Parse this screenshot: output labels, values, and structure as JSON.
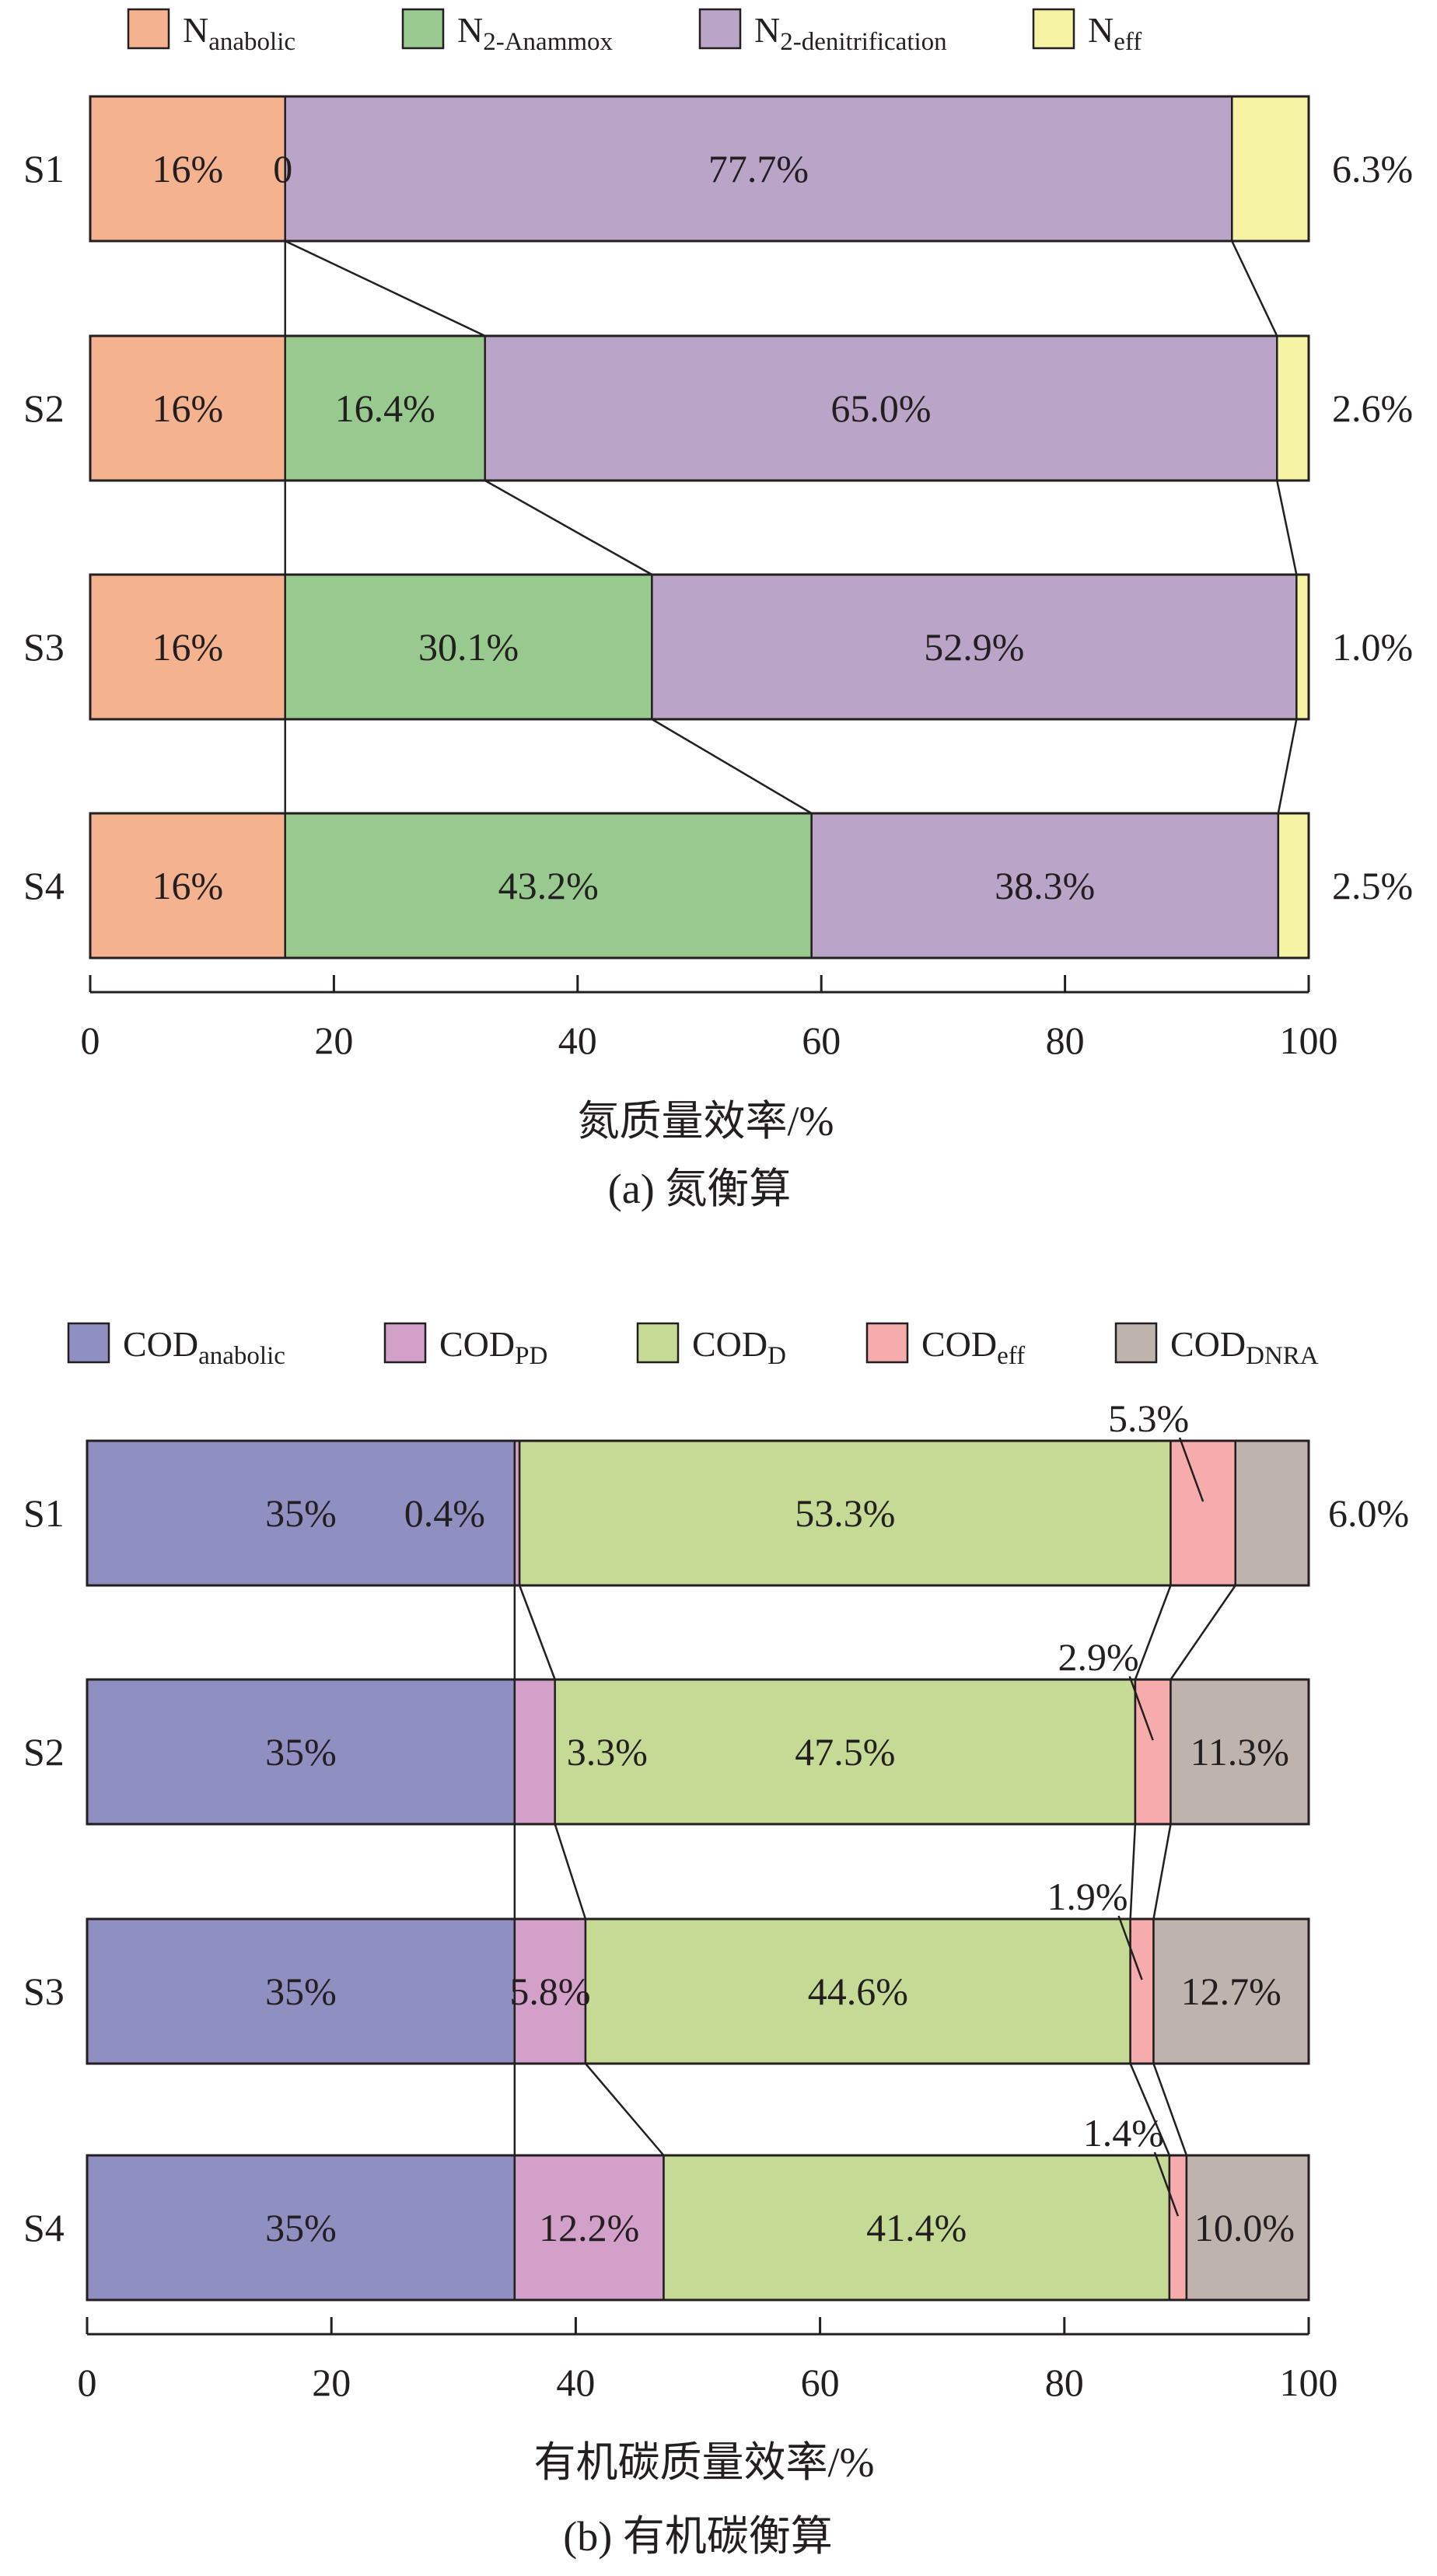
{
  "chart_data": [
    {
      "type": "bar",
      "orientation": "horizontal",
      "stacked": true,
      "caption": "(a) 氮衡算",
      "xlabel": "氮质量效率/%",
      "xlim": [
        0,
        100
      ],
      "xticks": [
        "0",
        "20",
        "40",
        "60",
        "80",
        "100"
      ],
      "categories": [
        "S1",
        "S2",
        "S3",
        "S4"
      ],
      "legend_position": "top",
      "series": [
        {
          "name": "N",
          "sub": "anabolic",
          "color": "#f4b28f",
          "values": [
            16,
            16,
            16,
            16
          ],
          "labels": [
            "16%",
            "16%",
            "16%",
            "16%"
          ]
        },
        {
          "name": "N",
          "sub": "2-Anammox",
          "color": "#98c98f",
          "values": [
            0,
            16.4,
            30.1,
            43.2
          ],
          "labels": [
            "0",
            "16.4%",
            "30.1%",
            "43.2%"
          ]
        },
        {
          "name": "N",
          "sub": "2-denitrification",
          "color": "#baa4c7",
          "values": [
            77.7,
            65.0,
            52.9,
            38.3
          ],
          "labels": [
            "77.7%",
            "65.0%",
            "52.9%",
            "38.3%"
          ]
        },
        {
          "name": "N",
          "sub": "eff",
          "color": "#f6f4a4",
          "values": [
            6.3,
            2.6,
            1.0,
            2.5
          ],
          "labels": [
            "6.3%",
            "2.6%",
            "1.0%",
            "2.5%"
          ]
        }
      ]
    },
    {
      "type": "bar",
      "orientation": "horizontal",
      "stacked": true,
      "caption": "(b) 有机碳衡算",
      "xlabel": "有机碳质量效率/%",
      "xlim": [
        0,
        100
      ],
      "xticks": [
        "0",
        "20",
        "40",
        "60",
        "80",
        "100"
      ],
      "categories": [
        "S1",
        "S2",
        "S3",
        "S4"
      ],
      "legend_position": "top",
      "series": [
        {
          "name": "COD",
          "sub": "anabolic",
          "color": "#8f8fc2",
          "values": [
            35,
            35,
            35,
            35
          ],
          "labels": [
            "35%",
            "35%",
            "35%",
            "35%"
          ]
        },
        {
          "name": "COD",
          "sub": "PD",
          "color": "#d3a0c9",
          "values": [
            0.4,
            3.3,
            5.8,
            12.2
          ],
          "labels": [
            "0.4%",
            "3.3%",
            "5.8%",
            "12.2%"
          ]
        },
        {
          "name": "COD",
          "sub": "D",
          "color": "#c5db95",
          "values": [
            53.3,
            47.5,
            44.6,
            41.4
          ],
          "labels": [
            "53.3%",
            "47.5%",
            "44.6%",
            "41.4%"
          ]
        },
        {
          "name": "COD",
          "sub": "eff",
          "color": "#f6acac",
          "values": [
            5.3,
            2.9,
            1.9,
            1.4
          ],
          "labels": [
            "5.3%",
            "2.9%",
            "1.9%",
            "1.4%"
          ]
        },
        {
          "name": "COD",
          "sub": "DNRA",
          "color": "#bfb3ae",
          "values": [
            6.0,
            11.3,
            12.7,
            10.0
          ],
          "labels": [
            "6.0%",
            "11.3%",
            "12.7%",
            "10.0%"
          ]
        }
      ]
    }
  ]
}
